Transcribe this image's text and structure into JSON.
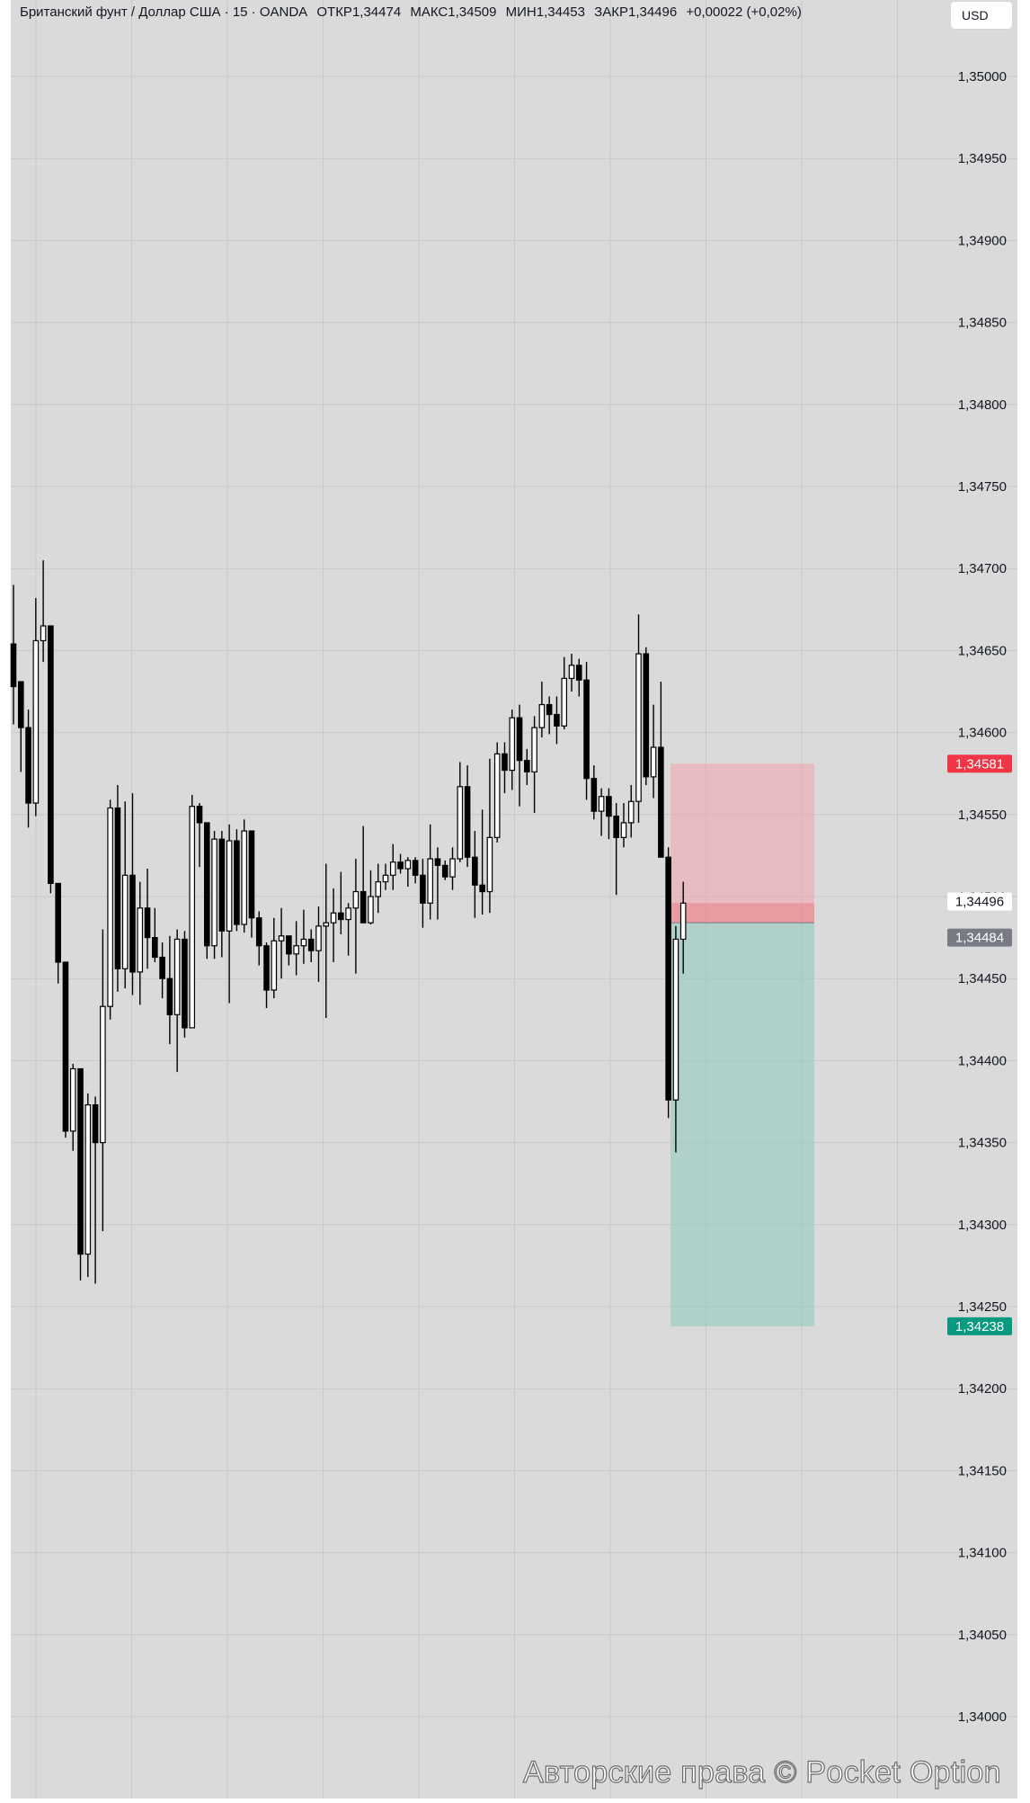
{
  "header": {
    "symbol": "Британский фунт / Доллар США · 15 · OANDA",
    "open_label": "ОТКР",
    "open": "1,34474",
    "high_label": "МАКС",
    "high": "1,34509",
    "low_label": "МИН",
    "low": "1,34453",
    "close_label": "ЗАКР",
    "close": "1,34496",
    "change": "+0,00022 (+0,02%)"
  },
  "currency_button": "USD",
  "watermark": "Авторские права © Pocket Option",
  "colors": {
    "background": "#dadada",
    "grid": "#c8c8c8",
    "stop_zone": "#f2a3ad",
    "target_zone": "#8ec9bd",
    "stop_label": "#f23645",
    "target_label": "#089981",
    "entry_label": "#787b86"
  },
  "chart_data": {
    "type": "candlestick",
    "title": "Британский фунт / Доллар США · 15 · OANDA",
    "ylim": [
      1.33962,
      1.35043
    ],
    "y_ticks": [
      "1,35000",
      "1,34950",
      "1,34900",
      "1,34850",
      "1,34800",
      "1,34750",
      "1,34700",
      "1,34650",
      "1,34600",
      "1,34550",
      "1,34500",
      "1,34450",
      "1,34400",
      "1,34350",
      "1,34300",
      "1,34250",
      "1,34200",
      "1,34150",
      "1,34100",
      "1,34050",
      "1,34000"
    ],
    "y_tick_values": [
      1.35,
      1.3495,
      1.349,
      1.3485,
      1.348,
      1.3475,
      1.347,
      1.3465,
      1.346,
      1.3455,
      1.345,
      1.3445,
      1.344,
      1.3435,
      1.343,
      1.3425,
      1.342,
      1.3415,
      1.341,
      1.3405,
      1.34
    ],
    "ohlc": [
      [
        1.34654,
        1.3469,
        1.34605,
        1.34628
      ],
      [
        1.34631,
        1.34628,
        1.34576,
        1.34603
      ],
      [
        1.34603,
        1.34614,
        1.34542,
        1.34557
      ],
      [
        1.34557,
        1.34682,
        1.34549,
        1.34656
      ],
      [
        1.34656,
        1.34705,
        1.34643,
        1.34665
      ],
      [
        1.34665,
        1.34665,
        1.34502,
        1.34508
      ],
      [
        1.34508,
        1.34508,
        1.34447,
        1.3446
      ],
      [
        1.3446,
        1.3446,
        1.34353,
        1.34357
      ],
      [
        1.34357,
        1.34398,
        1.34345,
        1.34395
      ],
      [
        1.34395,
        1.34395,
        1.34266,
        1.34282
      ],
      [
        1.34282,
        1.3438,
        1.34268,
        1.34373
      ],
      [
        1.34373,
        1.34378,
        1.34264,
        1.3435
      ],
      [
        1.3435,
        1.3448,
        1.34296,
        1.34433
      ],
      [
        1.34433,
        1.34559,
        1.34425,
        1.34554
      ],
      [
        1.34554,
        1.34568,
        1.34442,
        1.34456
      ],
      [
        1.34456,
        1.34558,
        1.34444,
        1.34513
      ],
      [
        1.34513,
        1.34563,
        1.3444,
        1.34454
      ],
      [
        1.34454,
        1.34509,
        1.34434,
        1.34493
      ],
      [
        1.34493,
        1.34517,
        1.34456,
        1.34475
      ],
      [
        1.34475,
        1.34493,
        1.3446,
        1.34463
      ],
      [
        1.34463,
        1.34472,
        1.34438,
        1.3445
      ],
      [
        1.3445,
        1.34476,
        1.3441,
        1.34428
      ],
      [
        1.34428,
        1.3448,
        1.34393,
        1.34474
      ],
      [
        1.34474,
        1.34479,
        1.34414,
        1.3442
      ],
      [
        1.3442,
        1.34562,
        1.3442,
        1.34555
      ],
      [
        1.34555,
        1.34557,
        1.34518,
        1.34545
      ],
      [
        1.34545,
        1.34545,
        1.34462,
        1.3447
      ],
      [
        1.3447,
        1.3454,
        1.34462,
        1.34535
      ],
      [
        1.34535,
        1.3454,
        1.34463,
        1.34479
      ],
      [
        1.34479,
        1.34544,
        1.34435,
        1.34534
      ],
      [
        1.34534,
        1.34541,
        1.34479,
        1.34483
      ],
      [
        1.34483,
        1.34547,
        1.34478,
        1.3454
      ],
      [
        1.3454,
        1.3454,
        1.34475,
        1.34487
      ],
      [
        1.34487,
        1.34491,
        1.34458,
        1.3447
      ],
      [
        1.3447,
        1.34472,
        1.34432,
        1.34443
      ],
      [
        1.34443,
        1.34487,
        1.34438,
        1.34473
      ],
      [
        1.34473,
        1.34493,
        1.3445,
        1.34476
      ],
      [
        1.34476,
        1.34476,
        1.34458,
        1.34465
      ],
      [
        1.34465,
        1.34485,
        1.34452,
        1.3447
      ],
      [
        1.3447,
        1.34492,
        1.34459,
        1.34474
      ],
      [
        1.34474,
        1.3448,
        1.3446,
        1.34467
      ],
      [
        1.34467,
        1.34494,
        1.34448,
        1.34482
      ],
      [
        1.34482,
        1.3452,
        1.34426,
        1.34484
      ],
      [
        1.34484,
        1.34505,
        1.3446,
        1.3449
      ],
      [
        1.3449,
        1.34515,
        1.34477,
        1.34486
      ],
      [
        1.34486,
        1.34496,
        1.34464,
        1.34493
      ],
      [
        1.34493,
        1.34523,
        1.34453,
        1.34503
      ],
      [
        1.34503,
        1.34543,
        1.34491,
        1.34484
      ],
      [
        1.34484,
        1.34516,
        1.34483,
        1.345
      ],
      [
        1.345,
        1.3452,
        1.3449,
        1.34509
      ],
      [
        1.34509,
        1.3452,
        1.34504,
        1.34513
      ],
      [
        1.34513,
        1.34532,
        1.34504,
        1.34521
      ],
      [
        1.34521,
        1.34526,
        1.34514,
        1.34517
      ],
      [
        1.34517,
        1.34524,
        1.34506,
        1.34522
      ],
      [
        1.34522,
        1.34524,
        1.34508,
        1.34513
      ],
      [
        1.34513,
        1.34523,
        1.34481,
        1.34496
      ],
      [
        1.34496,
        1.34544,
        1.34486,
        1.34523
      ],
      [
        1.34523,
        1.3453,
        1.34486,
        1.34519
      ],
      [
        1.34519,
        1.34522,
        1.3451,
        1.34512
      ],
      [
        1.34512,
        1.3453,
        1.34504,
        1.34523
      ],
      [
        1.34523,
        1.34582,
        1.34521,
        1.34567
      ],
      [
        1.34567,
        1.3458,
        1.34518,
        1.34524
      ],
      [
        1.34524,
        1.3454,
        1.34487,
        1.34507
      ],
      [
        1.34507,
        1.34553,
        1.34489,
        1.34503
      ],
      [
        1.34503,
        1.34584,
        1.3449,
        1.34536
      ],
      [
        1.34536,
        1.34594,
        1.34533,
        1.34587
      ],
      [
        1.34587,
        1.34594,
        1.34563,
        1.34577
      ],
      [
        1.34577,
        1.34614,
        1.34565,
        1.34609
      ],
      [
        1.34609,
        1.34617,
        1.34555,
        1.34583
      ],
      [
        1.34583,
        1.3459,
        1.34568,
        1.34576
      ],
      [
        1.34576,
        1.3461,
        1.34551,
        1.34603
      ],
      [
        1.34603,
        1.34631,
        1.34597,
        1.34617
      ],
      [
        1.34617,
        1.34622,
        1.34599,
        1.34611
      ],
      [
        1.34611,
        1.34622,
        1.34593,
        1.34604
      ],
      [
        1.34604,
        1.34646,
        1.34602,
        1.34633
      ],
      [
        1.34633,
        1.34648,
        1.34625,
        1.34641
      ],
      [
        1.34641,
        1.34645,
        1.34622,
        1.34632
      ],
      [
        1.34632,
        1.34643,
        1.34559,
        1.34572
      ],
      [
        1.34572,
        1.3458,
        1.34547,
        1.34552
      ],
      [
        1.34552,
        1.34566,
        1.34537,
        1.34561
      ],
      [
        1.34561,
        1.34566,
        1.34535,
        1.34549
      ],
      [
        1.34549,
        1.34557,
        1.34501,
        1.34536
      ],
      [
        1.34536,
        1.34557,
        1.3453,
        1.34545
      ],
      [
        1.34545,
        1.34568,
        1.34536,
        1.34558
      ],
      [
        1.34558,
        1.34672,
        1.34545,
        1.34648
      ],
      [
        1.34648,
        1.34652,
        1.34568,
        1.34573
      ],
      [
        1.34573,
        1.34617,
        1.3456,
        1.34591
      ],
      [
        1.34591,
        1.34631,
        1.34524,
        1.34524
      ],
      [
        1.34524,
        1.3453,
        1.34365,
        1.34376
      ],
      [
        1.34376,
        1.34482,
        1.34344,
        1.34474
      ],
      [
        1.34474,
        1.34509,
        1.34453,
        1.34496
      ]
    ],
    "zones": {
      "entry": 1.34484,
      "stop": 1.34581,
      "target": 1.34238
    },
    "price_labels": {
      "stop": "1,34581",
      "current": "1,34496",
      "entry": "1,34484",
      "target": "1,34238"
    }
  }
}
